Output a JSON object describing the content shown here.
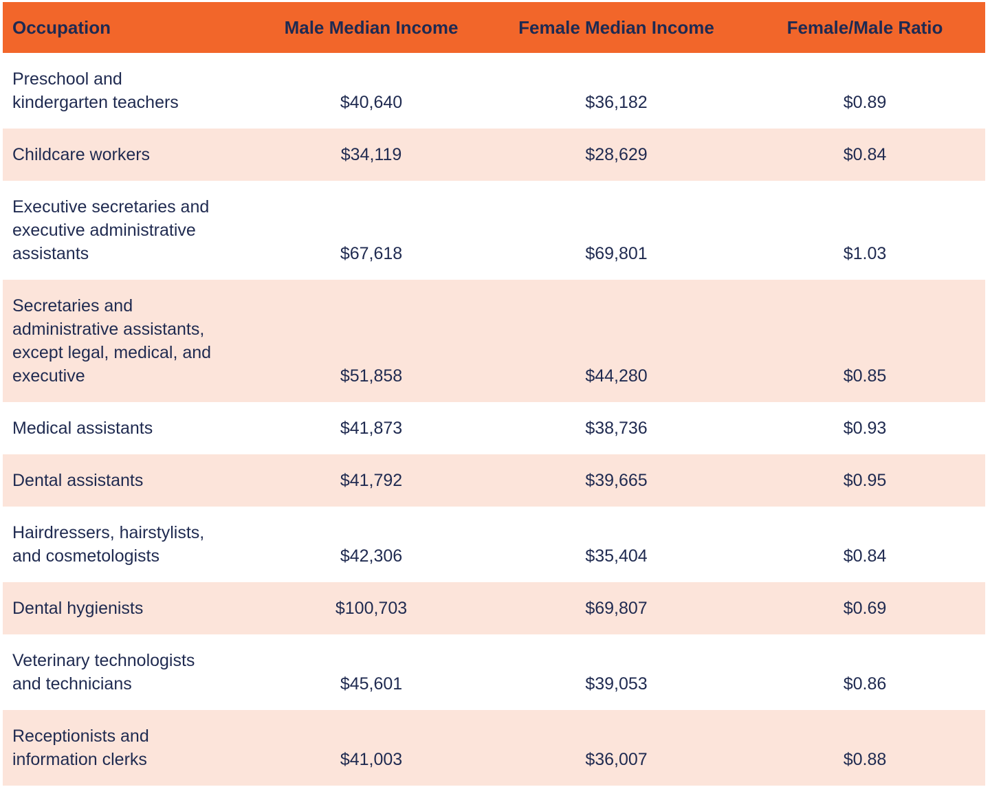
{
  "table": {
    "headers": [
      "Occupation",
      "Male Median Income",
      "Female Median Income",
      "Female/Male Ratio"
    ],
    "rows": [
      {
        "occupation": "Preschool and\nkindergarten teachers",
        "male": "$40,640",
        "female": "$36,182",
        "ratio": "$0.89"
      },
      {
        "occupation": "Childcare workers",
        "male": "$34,119",
        "female": "$28,629",
        "ratio": "$0.84"
      },
      {
        "occupation": "Executive secretaries and\nexecutive administrative\nassistants",
        "male": "$67,618",
        "female": "$69,801",
        "ratio": "$1.03"
      },
      {
        "occupation": "Secretaries and\nadministrative assistants,\nexcept legal, medical, and\nexecutive",
        "male": "$51,858",
        "female": "$44,280",
        "ratio": "$0.85"
      },
      {
        "occupation": "Medical assistants",
        "male": "$41,873",
        "female": "$38,736",
        "ratio": "$0.93"
      },
      {
        "occupation": "Dental assistants",
        "male": "$41,792",
        "female": "$39,665",
        "ratio": "$0.95"
      },
      {
        "occupation": "Hairdressers, hairstylists,\nand cosmetologists",
        "male": "$42,306",
        "female": "$35,404",
        "ratio": "$0.84"
      },
      {
        "occupation": "Dental hygienists",
        "male": "$100,703",
        "female": "$69,807",
        "ratio": "$0.69"
      },
      {
        "occupation": "Veterinary technologists\nand technicians",
        "male": "$45,601",
        "female": "$39,053",
        "ratio": "$0.86"
      },
      {
        "occupation": "Receptionists and\ninformation clerks",
        "male": "$41,003",
        "female": "$36,007",
        "ratio": "$0.88"
      }
    ]
  },
  "colors": {
    "header_background": "#f2662a",
    "row_alternate_background": "#fce4da",
    "row_background": "#ffffff",
    "text": "#1f2a50"
  },
  "chart_data": {
    "type": "table",
    "columns": [
      "Occupation",
      "Male Median Income",
      "Female Median Income",
      "Female/Male Ratio"
    ],
    "rows": [
      [
        "Preschool and kindergarten teachers",
        40640,
        36182,
        0.89
      ],
      [
        "Childcare workers",
        34119,
        28629,
        0.84
      ],
      [
        "Executive secretaries and executive administrative assistants",
        67618,
        69801,
        1.03
      ],
      [
        "Secretaries and administrative assistants, except legal, medical, and executive",
        51858,
        44280,
        0.85
      ],
      [
        "Medical assistants",
        41873,
        38736,
        0.93
      ],
      [
        "Dental assistants",
        41792,
        39665,
        0.95
      ],
      [
        "Hairdressers, hairstylists, and cosmetologists",
        42306,
        35404,
        0.84
      ],
      [
        "Dental hygienists",
        100703,
        69807,
        0.69
      ],
      [
        "Veterinary technologists and technicians",
        45601,
        39053,
        0.86
      ],
      [
        "Receptionists and information clerks",
        41003,
        36007,
        0.88
      ]
    ],
    "title": "",
    "notes": "Median income by occupation and gender with female-to-male earnings ratio"
  }
}
